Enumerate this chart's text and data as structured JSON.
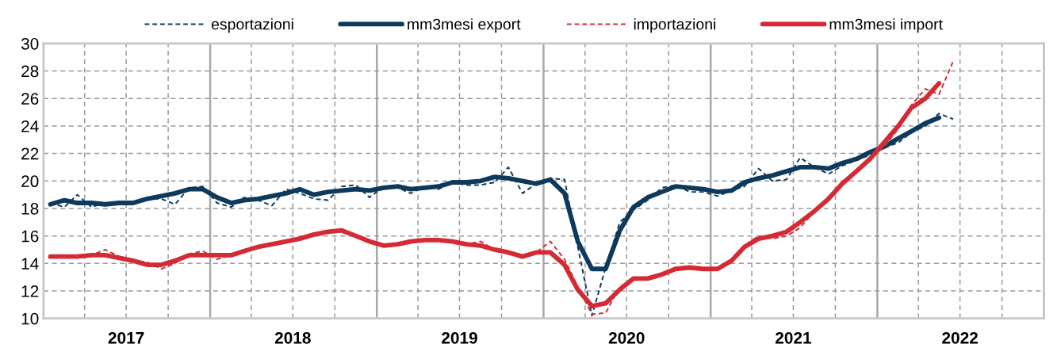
{
  "chart_data": {
    "type": "line",
    "x": [
      "2017-01-16",
      "2017-02-16",
      "2017-03-16",
      "2017-04-16",
      "2017-05-16",
      "2017-06-16",
      "2017-07-16",
      "2017-08-16",
      "2017-09-16",
      "2017-10-16",
      "2017-11-16",
      "2017-12-16",
      "2018-01-16",
      "2018-02-16",
      "2018-03-16",
      "2018-04-16",
      "2018-05-16",
      "2018-06-16",
      "2018-07-16",
      "2018-08-16",
      "2018-09-16",
      "2018-10-16",
      "2018-11-16",
      "2018-12-16",
      "2019-01-16",
      "2019-02-16",
      "2019-03-16",
      "2019-04-16",
      "2019-05-16",
      "2019-06-16",
      "2019-07-16",
      "2019-08-16",
      "2019-09-16",
      "2019-10-16",
      "2019-11-16",
      "2019-12-16",
      "2020-01-16",
      "2020-02-16",
      "2020-03-16",
      "2020-04-16",
      "2020-05-16",
      "2020-06-16",
      "2020-07-16",
      "2020-08-16",
      "2020-09-16",
      "2020-10-16",
      "2020-11-16",
      "2020-12-16",
      "2021-01-16",
      "2021-02-16",
      "2021-03-16",
      "2021-04-16",
      "2021-05-16",
      "2021-06-16",
      "2021-07-16",
      "2021-08-16",
      "2021-09-16",
      "2021-10-16",
      "2021-11-16",
      "2021-12-16",
      "2022-01-16",
      "2022-02-16",
      "2022-03-16",
      "2022-04-16",
      "2022-05-16",
      "2022-06-16"
    ],
    "series": [
      {
        "name": "esportazioni",
        "color": "#0d3a5c",
        "line_style": "dashed",
        "values": [
          18.4,
          18.1,
          19.0,
          18.1,
          18.4,
          18.3,
          18.3,
          18.7,
          18.7,
          18.3,
          19.5,
          19.6,
          18.4,
          18.1,
          18.8,
          18.6,
          18.2,
          19.4,
          19.1,
          18.7,
          18.6,
          19.6,
          19.7,
          18.8,
          19.6,
          19.5,
          19.1,
          19.6,
          19.4,
          19.9,
          19.7,
          19.7,
          19.9,
          21.0,
          19.1,
          19.8,
          20.2,
          20.1,
          15.2,
          10.2,
          13.7,
          17.0,
          17.9,
          18.6,
          19.5,
          19.7,
          19.2,
          19.2,
          18.9,
          19.3,
          19.6,
          20.9,
          20.0,
          20.1,
          21.7,
          21.0,
          20.5,
          21.1,
          21.5,
          21.9,
          22.4,
          22.8,
          23.5,
          24.0,
          24.9,
          24.5
        ]
      },
      {
        "name": "mm3mesi export",
        "color": "#0d3a5c",
        "line_style": "solid",
        "values": [
          18.3,
          18.6,
          18.4,
          18.4,
          18.3,
          18.4,
          18.4,
          18.7,
          18.9,
          19.1,
          19.4,
          19.4,
          18.8,
          18.4,
          18.6,
          18.7,
          18.9,
          19.1,
          19.4,
          19.0,
          19.2,
          19.3,
          19.4,
          19.3,
          19.5,
          19.6,
          19.4,
          19.5,
          19.6,
          19.9,
          19.9,
          20.0,
          20.3,
          20.2,
          20.0,
          19.8,
          20.1,
          19.1,
          15.6,
          13.6,
          13.6,
          16.4,
          18.1,
          18.8,
          19.2,
          19.6,
          19.5,
          19.4,
          19.2,
          19.3,
          19.9,
          20.2,
          20.4,
          20.7,
          21.0,
          21.0,
          20.9,
          21.3,
          21.6,
          22.1,
          22.5,
          23.1,
          23.6,
          24.2,
          24.6,
          null
        ]
      },
      {
        "name": "importazioni",
        "color": "#d42a35",
        "line_style": "dashed",
        "values": [
          14.5,
          14.5,
          14.5,
          14.6,
          15.0,
          14.5,
          14.2,
          14.1,
          13.6,
          14.0,
          14.7,
          14.9,
          14.3,
          14.6,
          14.9,
          15.2,
          15.4,
          15.6,
          15.8,
          16.0,
          16.3,
          16.3,
          16.0,
          15.6,
          15.3,
          15.4,
          15.6,
          15.7,
          15.7,
          15.6,
          15.4,
          15.6,
          15.0,
          14.7,
          14.5,
          14.8,
          15.6,
          14.3,
          12.3,
          10.3,
          10.4,
          12.3,
          12.9,
          13.0,
          13.2,
          13.6,
          13.7,
          13.6,
          13.5,
          14.2,
          15.3,
          16.0,
          15.8,
          16.0,
          16.6,
          17.8,
          18.7,
          19.8,
          20.6,
          21.6,
          22.5,
          23.8,
          25.5,
          26.7,
          26.3,
          28.7
        ]
      },
      {
        "name": "mm3mesi import",
        "color": "#d42a35",
        "line_style": "solid",
        "values": [
          14.5,
          14.5,
          14.5,
          14.6,
          14.6,
          14.4,
          14.2,
          13.9,
          13.9,
          14.2,
          14.6,
          14.6,
          14.6,
          14.6,
          14.9,
          15.2,
          15.4,
          15.6,
          15.8,
          16.1,
          16.3,
          16.4,
          16.0,
          15.6,
          15.3,
          15.4,
          15.6,
          15.7,
          15.7,
          15.6,
          15.4,
          15.3,
          15.0,
          14.8,
          14.5,
          14.8,
          14.8,
          13.9,
          12.1,
          10.9,
          11.1,
          12.1,
          12.9,
          12.9,
          13.2,
          13.6,
          13.7,
          13.6,
          13.6,
          14.2,
          15.2,
          15.8,
          16.0,
          16.3,
          17.0,
          17.8,
          18.7,
          19.8,
          20.7,
          21.6,
          22.8,
          24.0,
          25.3,
          26.0,
          27.1,
          null
        ]
      }
    ],
    "xlim": [
      "2017-01-01",
      "2023-01-01"
    ],
    "xticks": [
      {
        "value": "2017-01-01",
        "label": null
      },
      {
        "value": "2017-04-01",
        "label": null
      },
      {
        "value": "2017-07-01",
        "label": "2017"
      },
      {
        "value": "2017-10-01",
        "label": null
      },
      {
        "value": "2018-01-01",
        "label": null
      },
      {
        "value": "2018-04-01",
        "label": null
      },
      {
        "value": "2018-07-01",
        "label": "2018"
      },
      {
        "value": "2018-10-01",
        "label": null
      },
      {
        "value": "2019-01-01",
        "label": null
      },
      {
        "value": "2019-04-01",
        "label": null
      },
      {
        "value": "2019-07-01",
        "label": "2019"
      },
      {
        "value": "2019-10-01",
        "label": null
      },
      {
        "value": "2020-01-01",
        "label": null
      },
      {
        "value": "2020-04-01",
        "label": null
      },
      {
        "value": "2020-07-01",
        "label": "2020"
      },
      {
        "value": "2020-10-01",
        "label": null
      },
      {
        "value": "2021-01-01",
        "label": null
      },
      {
        "value": "2021-04-01",
        "label": null
      },
      {
        "value": "2021-07-01",
        "label": "2021"
      },
      {
        "value": "2021-10-01",
        "label": null
      },
      {
        "value": "2022-01-01",
        "label": null
      },
      {
        "value": "2022-04-01",
        "label": null
      },
      {
        "value": "2022-07-01",
        "label": "2022"
      },
      {
        "value": "2022-10-01",
        "label": null
      },
      {
        "value": "2023-01-01",
        "label": null
      }
    ],
    "ylim": [
      10,
      30
    ],
    "yticks": [
      10,
      12,
      14,
      16,
      18,
      20,
      22,
      24,
      26,
      28,
      30
    ],
    "grid": true,
    "legend": "top"
  }
}
